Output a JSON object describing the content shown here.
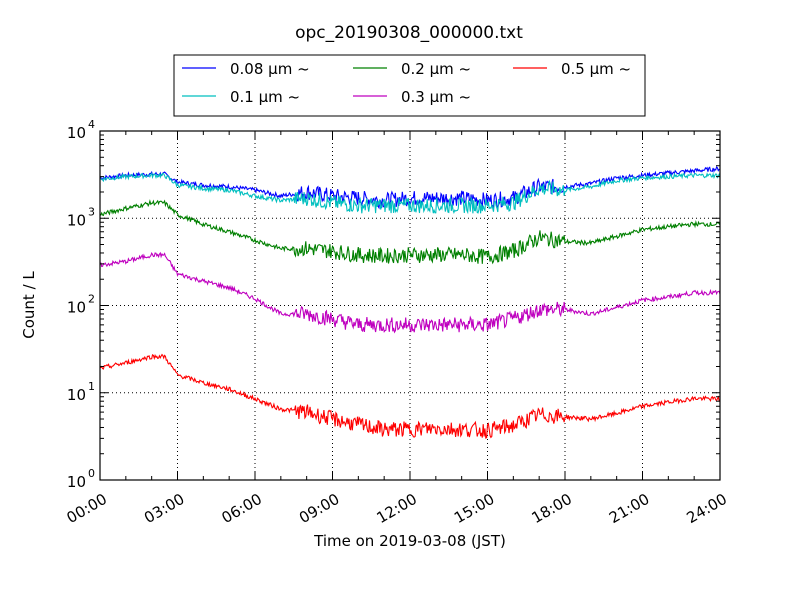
{
  "chart_data": {
    "type": "line",
    "title": "opc_20190308_000000.txt",
    "xlabel": "Time on 2019-03-08 (JST)",
    "ylabel": "Count / L",
    "yscale": "log",
    "ylim": [
      1,
      10000
    ],
    "xlim": [
      0,
      24
    ],
    "grid": true,
    "legend_position": "top-center",
    "x_ticks": [
      {
        "value": 0,
        "label": "00:00"
      },
      {
        "value": 3,
        "label": "03:00"
      },
      {
        "value": 6,
        "label": "06:00"
      },
      {
        "value": 9,
        "label": "09:00"
      },
      {
        "value": 12,
        "label": "12:00"
      },
      {
        "value": 15,
        "label": "15:00"
      },
      {
        "value": 18,
        "label": "18:00"
      },
      {
        "value": 21,
        "label": "21:00"
      },
      {
        "value": 24,
        "label": "24:00"
      }
    ],
    "y_ticks": [
      {
        "value": 1,
        "base": "10",
        "exp": "0"
      },
      {
        "value": 10,
        "base": "10",
        "exp": "1"
      },
      {
        "value": 100,
        "base": "10",
        "exp": "2"
      },
      {
        "value": 1000,
        "base": "10",
        "exp": "3"
      },
      {
        "value": 10000,
        "base": "10",
        "exp": "4"
      }
    ],
    "x": [
      0,
      1,
      2,
      2.5,
      3,
      4,
      5,
      6,
      7,
      8,
      9,
      10,
      11,
      12,
      13,
      14,
      15,
      16,
      17,
      18,
      19,
      20,
      21,
      22,
      23,
      24
    ],
    "series": [
      {
        "name": "0.08 μm ~",
        "label_num": "0.08",
        "color": "#0000ff",
        "values": [
          2900,
          3100,
          3200,
          3200,
          2600,
          2400,
          2300,
          2100,
          1800,
          2000,
          1800,
          1700,
          1600,
          1700,
          1700,
          1700,
          1600,
          1700,
          2300,
          2300,
          2500,
          2900,
          3100,
          3300,
          3500,
          3700
        ]
      },
      {
        "name": "0.1 μm ~",
        "label_num": "0.1",
        "color": "#00bfbf",
        "values": [
          2800,
          3000,
          3100,
          3100,
          2400,
          2200,
          2100,
          1800,
          1600,
          1700,
          1500,
          1400,
          1400,
          1400,
          1400,
          1400,
          1400,
          1500,
          2200,
          2100,
          2300,
          2700,
          2900,
          3000,
          3100,
          3100
        ]
      },
      {
        "name": "0.2 μm ~",
        "label_num": "0.2",
        "color": "#008000",
        "values": [
          1100,
          1300,
          1500,
          1500,
          1100,
          850,
          700,
          560,
          450,
          450,
          420,
          380,
          370,
          380,
          380,
          380,
          360,
          420,
          600,
          540,
          520,
          620,
          740,
          800,
          860,
          850
        ]
      },
      {
        "name": "0.3 μm ~",
        "label_num": "0.3",
        "color": "#bf00bf",
        "values": [
          290,
          320,
          380,
          380,
          230,
          190,
          160,
          120,
          80,
          80,
          70,
          60,
          60,
          60,
          60,
          60,
          60,
          70,
          90,
          90,
          80,
          95,
          115,
          125,
          140,
          140
        ]
      },
      {
        "name": "0.5 μm ~",
        "label_num": "0.5",
        "color": "#ff0000",
        "values": [
          19,
          22,
          26,
          26,
          16,
          13,
          11,
          8.5,
          6.5,
          6,
          5,
          4.3,
          3.8,
          3.8,
          3.9,
          3.8,
          3.7,
          4.2,
          5.6,
          5.3,
          5,
          5.8,
          7,
          7.8,
          8.6,
          8.5
        ]
      }
    ]
  }
}
